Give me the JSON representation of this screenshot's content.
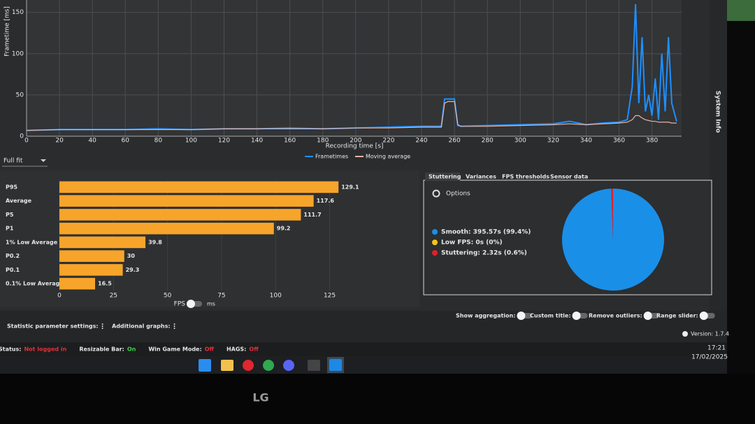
{
  "frametime_chart": {
    "type": "line",
    "y_label": "Frametime [ms]",
    "x_label": "Recording time [s]",
    "xlim": [
      0,
      398
    ],
    "ylim": [
      0,
      165
    ],
    "xticks": [
      0,
      20,
      40,
      60,
      80,
      100,
      120,
      140,
      160,
      180,
      200,
      220,
      240,
      260,
      280,
      300,
      320,
      340,
      360,
      380
    ],
    "yticks": [
      0,
      50,
      100,
      150
    ],
    "grid": true,
    "x": [
      0,
      20,
      40,
      60,
      80,
      100,
      120,
      140,
      160,
      180,
      200,
      220,
      240,
      252,
      254,
      256,
      260,
      262,
      264,
      280,
      300,
      320,
      330,
      340,
      350,
      360,
      365,
      368,
      370,
      372,
      374,
      376,
      378,
      380,
      382,
      384,
      386,
      388,
      390,
      392,
      395
    ],
    "series": [
      {
        "name": "Frametimes",
        "color": "#1e8fff",
        "values": [
          7,
          8,
          8,
          8,
          9,
          8,
          9,
          9,
          10,
          9,
          10,
          11,
          12,
          12,
          45,
          45,
          45,
          13,
          12,
          13,
          14,
          15,
          18,
          14,
          16,
          17,
          20,
          60,
          160,
          40,
          120,
          30,
          50,
          25,
          70,
          20,
          100,
          30,
          120,
          40,
          18
        ]
      },
      {
        "name": "Moving average",
        "color": "#e8b4a4",
        "values": [
          7,
          8,
          8,
          8,
          8,
          8,
          9,
          9,
          9,
          9,
          10,
          10,
          11,
          11,
          40,
          42,
          42,
          14,
          12,
          12,
          13,
          14,
          15,
          14,
          15,
          16,
          17,
          20,
          25,
          25,
          22,
          20,
          19,
          18,
          18,
          17,
          17,
          17,
          17,
          16,
          16
        ]
      }
    ]
  },
  "scale_select": "Full fit",
  "bar_chart": {
    "type": "bar",
    "orientation": "horizontal",
    "categories": [
      "P95",
      "Average",
      "P5",
      "P1",
      "1% Low Average",
      "P0.2",
      "P0.1",
      "0.1% Low Average"
    ],
    "values": [
      129.1,
      117.6,
      111.7,
      99.2,
      39.8,
      30,
      29.3,
      16.5
    ],
    "color": "#f7a42a",
    "xlim": [
      0,
      130
    ],
    "xticks": [
      0,
      25,
      50,
      75,
      100,
      125
    ],
    "toggle": [
      "FPS",
      "ms"
    ]
  },
  "tabs": [
    "Stuttering",
    "Variances",
    "FPS thresholds",
    "Sensor data"
  ],
  "options": "Options",
  "pie_chart": {
    "type": "pie",
    "labels": [
      "Smooth: 395.57s (99.4%)",
      "Low FPS: 0s (0%)",
      "Stuttering: 2.32s (0.6%)"
    ],
    "values": [
      99.4,
      0,
      0.6
    ],
    "colors": [
      "#1a8fe8",
      "#f5c518",
      "#e0202a"
    ]
  },
  "settings": {
    "left": [
      "Statistic parameter settings:",
      "Additional graphs:"
    ],
    "right": [
      "Show aggregation:",
      "Custom title:",
      "Remove outliers:",
      "Range slider:"
    ],
    "version": "Version: 1.7.4"
  },
  "status": [
    {
      "label": "Status:",
      "value": "Not logged in"
    },
    {
      "label": "Resizable Bar:",
      "value": "On"
    },
    {
      "label": "Win Game Mode:",
      "value": "Off"
    },
    {
      "label": "HAGS:",
      "value": "Off"
    }
  ],
  "side_label": "System Info",
  "clock": {
    "time": "17:21",
    "date": "17/02/2025"
  },
  "brand": "LG"
}
